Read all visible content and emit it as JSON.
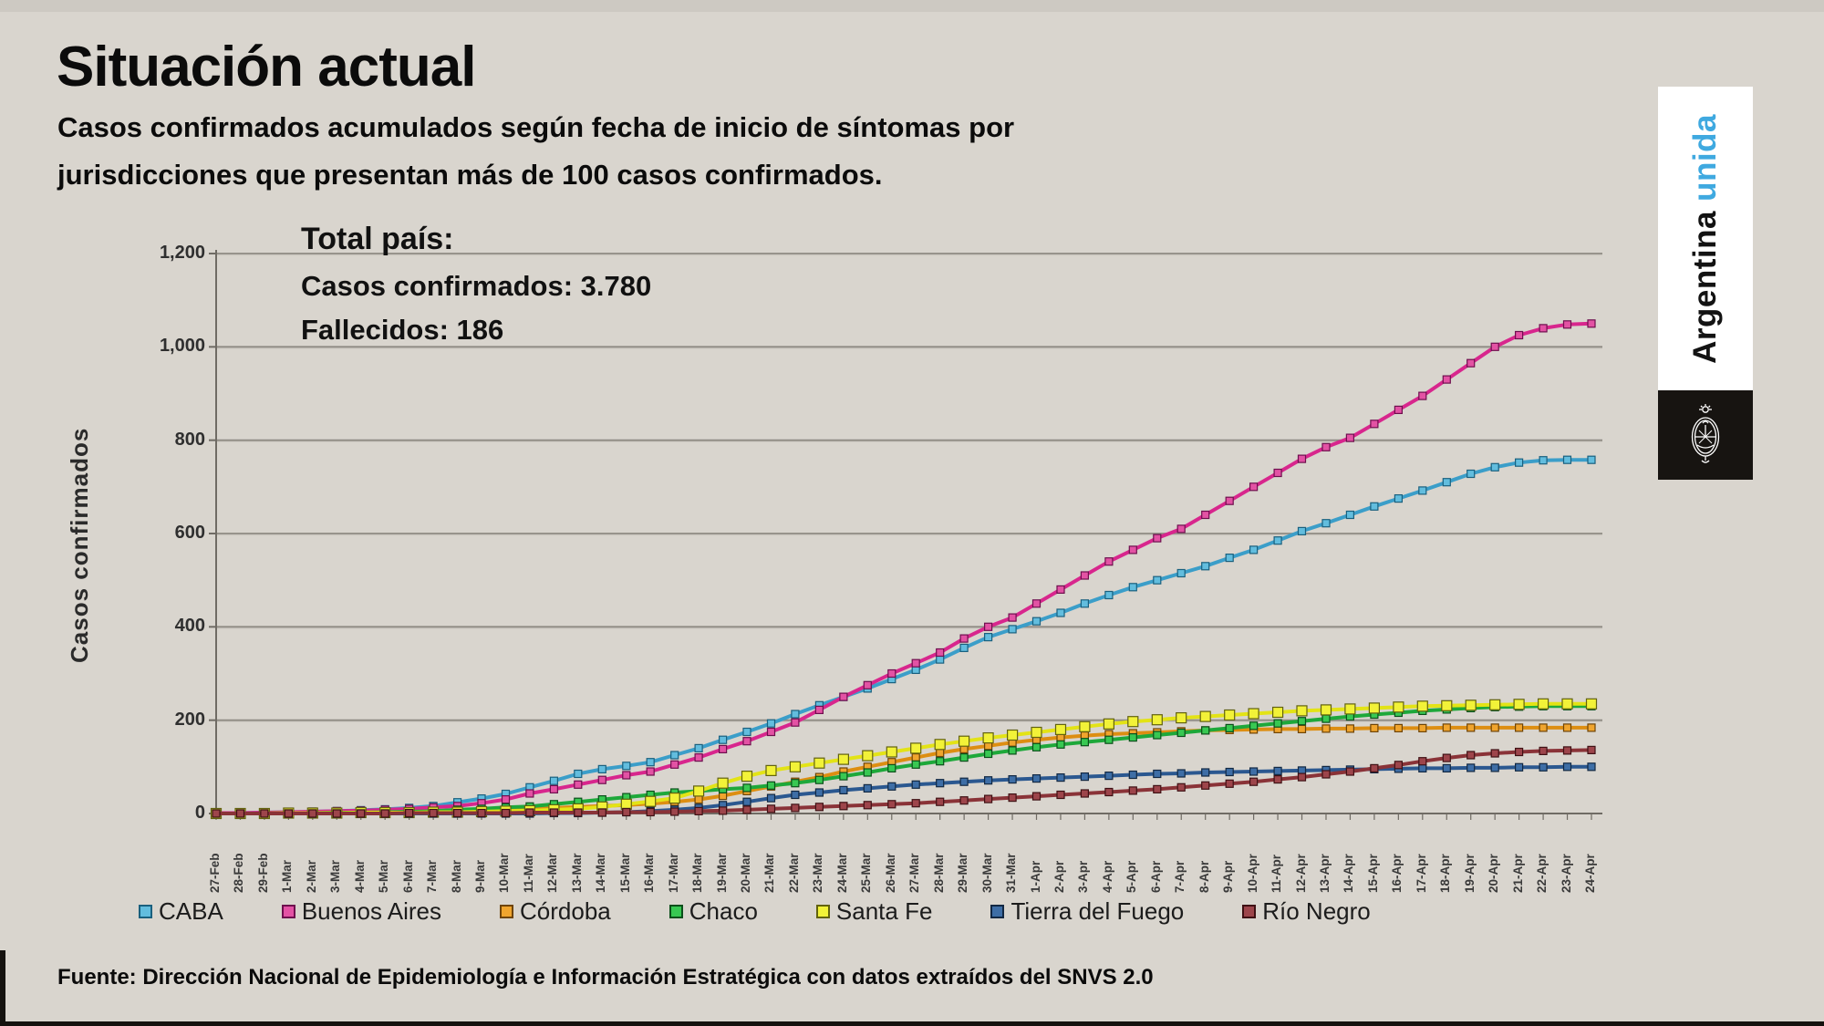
{
  "slide": {
    "title": "Situación actual",
    "subtitle": "Casos confirmados acumulados según fecha de inicio de síntomas por jurisdicciones que presentan más de 100 casos confirmados.",
    "annotation": {
      "line1": "Total país:",
      "line2": "Casos confirmados: 3.780",
      "line3": "Fallecidos: 186"
    },
    "footer": "Fuente: Dirección Nacional de Epidemiología e Información Estratégica con datos extraídos del SNVS 2.0",
    "banner": {
      "word1": "Argentina",
      "word2": "unida",
      "word2_color": "#3FA9E0"
    }
  },
  "chart_data": {
    "type": "line",
    "title": "",
    "xlabel": "",
    "ylabel": "Casos confirmados",
    "ylim": [
      0,
      1200
    ],
    "ytick_step": 200,
    "ytick_labels": [
      "0",
      "200",
      "400",
      "600",
      "800",
      "1,000",
      "1,200"
    ],
    "grid": true,
    "legend_position": "bottom",
    "categories": [
      "27-Feb",
      "28-Feb",
      "29-Feb",
      "1-Mar",
      "2-Mar",
      "3-Mar",
      "4-Mar",
      "5-Mar",
      "6-Mar",
      "7-Mar",
      "8-Mar",
      "9-Mar",
      "10-Mar",
      "11-Mar",
      "12-Mar",
      "13-Mar",
      "14-Mar",
      "15-Mar",
      "16-Mar",
      "17-Mar",
      "18-Mar",
      "19-Mar",
      "20-Mar",
      "21-Mar",
      "22-Mar",
      "23-Mar",
      "24-Mar",
      "25-Mar",
      "26-Mar",
      "27-Mar",
      "28-Mar",
      "29-Mar",
      "30-Mar",
      "31-Mar",
      "1-Apr",
      "2-Apr",
      "3-Apr",
      "4-Apr",
      "5-Apr",
      "6-Apr",
      "7-Apr",
      "8-Apr",
      "9-Apr",
      "10-Apr",
      "11-Apr",
      "12-Apr",
      "13-Apr",
      "14-Apr",
      "15-Apr",
      "16-Apr",
      "17-Apr",
      "18-Apr",
      "19-Apr",
      "20-Apr",
      "21-Apr",
      "22-Apr",
      "23-Apr",
      "24-Apr"
    ],
    "series": [
      {
        "name": "CABA",
        "color": "#3B9EC9",
        "marker": "#62BDDE",
        "edge": "#1a607e",
        "marker_size": 8,
        "values": [
          1,
          1,
          2,
          3,
          4,
          5,
          7,
          9,
          12,
          16,
          24,
          32,
          42,
          56,
          70,
          85,
          95,
          102,
          110,
          125,
          140,
          158,
          175,
          193,
          213,
          232,
          250,
          268,
          288,
          308,
          330,
          355,
          378,
          395,
          412,
          430,
          450,
          468,
          485,
          500,
          515,
          530,
          548,
          565,
          585,
          605,
          622,
          640,
          658,
          675,
          692,
          710,
          728,
          742,
          752,
          757,
          758,
          758
        ]
      },
      {
        "name": "Buenos Aires",
        "color": "#D8268D",
        "marker": "#E352A4",
        "edge": "#6e0f4e",
        "marker_size": 8,
        "values": [
          1,
          1,
          2,
          3,
          4,
          5,
          6,
          8,
          10,
          13,
          16,
          22,
          30,
          43,
          52,
          62,
          72,
          82,
          90,
          105,
          120,
          138,
          155,
          175,
          195,
          222,
          250,
          275,
          300,
          322,
          345,
          375,
          400,
          420,
          450,
          480,
          510,
          540,
          565,
          590,
          610,
          640,
          670,
          700,
          730,
          760,
          785,
          805,
          835,
          865,
          895,
          930,
          965,
          1000,
          1025,
          1040,
          1048,
          1050
        ]
      },
      {
        "name": "Córdoba",
        "color": "#DD8E12",
        "marker": "#F0A52E",
        "edge": "#6e4406",
        "marker_size": 8,
        "values": [
          0,
          0,
          0,
          1,
          1,
          2,
          2,
          3,
          3,
          4,
          5,
          6,
          8,
          10,
          12,
          14,
          16,
          18,
          21,
          25,
          30,
          38,
          48,
          58,
          68,
          78,
          90,
          100,
          110,
          120,
          130,
          138,
          145,
          152,
          158,
          163,
          167,
          170,
          172,
          174,
          176,
          178,
          179,
          180,
          181,
          181,
          182,
          182,
          183,
          183,
          183,
          184,
          184,
          184,
          184,
          184,
          184,
          184
        ]
      },
      {
        "name": "Chaco",
        "color": "#1EA83A",
        "marker": "#38C852",
        "edge": "#0a4f1a",
        "marker_size": 8,
        "values": [
          0,
          0,
          0,
          1,
          1,
          2,
          2,
          3,
          4,
          5,
          8,
          10,
          13,
          15,
          20,
          25,
          30,
          35,
          40,
          45,
          48,
          52,
          55,
          60,
          65,
          72,
          80,
          88,
          97,
          105,
          112,
          120,
          128,
          135,
          142,
          148,
          153,
          158,
          163,
          168,
          173,
          178,
          183,
          188,
          193,
          198,
          203,
          208,
          212,
          216,
          220,
          223,
          226,
          228,
          229,
          230,
          230,
          230
        ]
      },
      {
        "name": "Santa Fe",
        "color": "#E3E316",
        "marker": "#F2F238",
        "edge": "#62620e",
        "marker_size": 11,
        "values": [
          0,
          0,
          0,
          1,
          1,
          1,
          2,
          2,
          2,
          3,
          3,
          4,
          5,
          6,
          8,
          10,
          14,
          20,
          26,
          33,
          48,
          65,
          80,
          92,
          100,
          108,
          116,
          124,
          132,
          140,
          148,
          155,
          162,
          168,
          174,
          180,
          186,
          192,
          197,
          201,
          205,
          208,
          211,
          214,
          217,
          220,
          222,
          224,
          226,
          228,
          230,
          231,
          232,
          233,
          234,
          235,
          235,
          235
        ]
      },
      {
        "name": "Tierra del Fuego",
        "color": "#2B5890",
        "marker": "#3E6EA6",
        "edge": "#122843",
        "marker_size": 8,
        "values": [
          0,
          0,
          0,
          0,
          0,
          0,
          0,
          0,
          0,
          0,
          0,
          0,
          0,
          0,
          1,
          1,
          2,
          3,
          5,
          8,
          12,
          18,
          25,
          33,
          40,
          45,
          50,
          54,
          58,
          62,
          65,
          68,
          71,
          73,
          75,
          77,
          79,
          81,
          83,
          85,
          86,
          88,
          89,
          90,
          91,
          92,
          93,
          94,
          95,
          96,
          97,
          97,
          98,
          98,
          99,
          99,
          100,
          100
        ]
      },
      {
        "name": "Río Negro",
        "color": "#8A3338",
        "marker": "#9D454B",
        "edge": "#3f1114",
        "marker_size": 8,
        "values": [
          0,
          0,
          0,
          0,
          0,
          0,
          0,
          0,
          1,
          1,
          1,
          1,
          1,
          2,
          2,
          2,
          2,
          3,
          3,
          4,
          5,
          6,
          8,
          10,
          12,
          14,
          16,
          18,
          20,
          22,
          25,
          28,
          31,
          34,
          37,
          40,
          43,
          46,
          49,
          52,
          56,
          60,
          64,
          68,
          73,
          78,
          84,
          90,
          97,
          104,
          112,
          119,
          125,
          129,
          132,
          134,
          135,
          136
        ]
      }
    ]
  }
}
